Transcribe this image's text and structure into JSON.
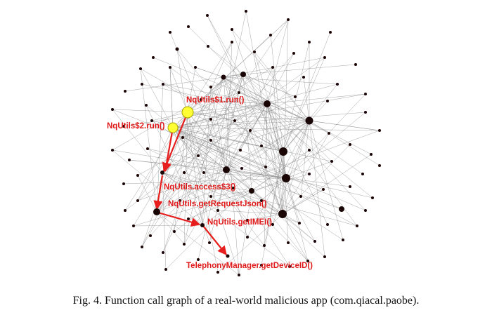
{
  "caption": "Fig. 4.  Function call graph of a real-world malicious app (com.qiacal.paobe).",
  "highlight_color": "#e61e1e",
  "highlight_node_color": "#ffff33",
  "node_color": "#1a0505",
  "call_path": [
    {
      "label": "NqUtils$1.run()"
    },
    {
      "label": "NqUtils$2.run()"
    },
    {
      "label": "NqUtils.access$3()"
    },
    {
      "label": "NqUtils.getRequestJson()"
    },
    {
      "label": "NqUtils.getIMEI()"
    },
    {
      "label": "TelephonyManager.getDeviceID()"
    }
  ]
}
